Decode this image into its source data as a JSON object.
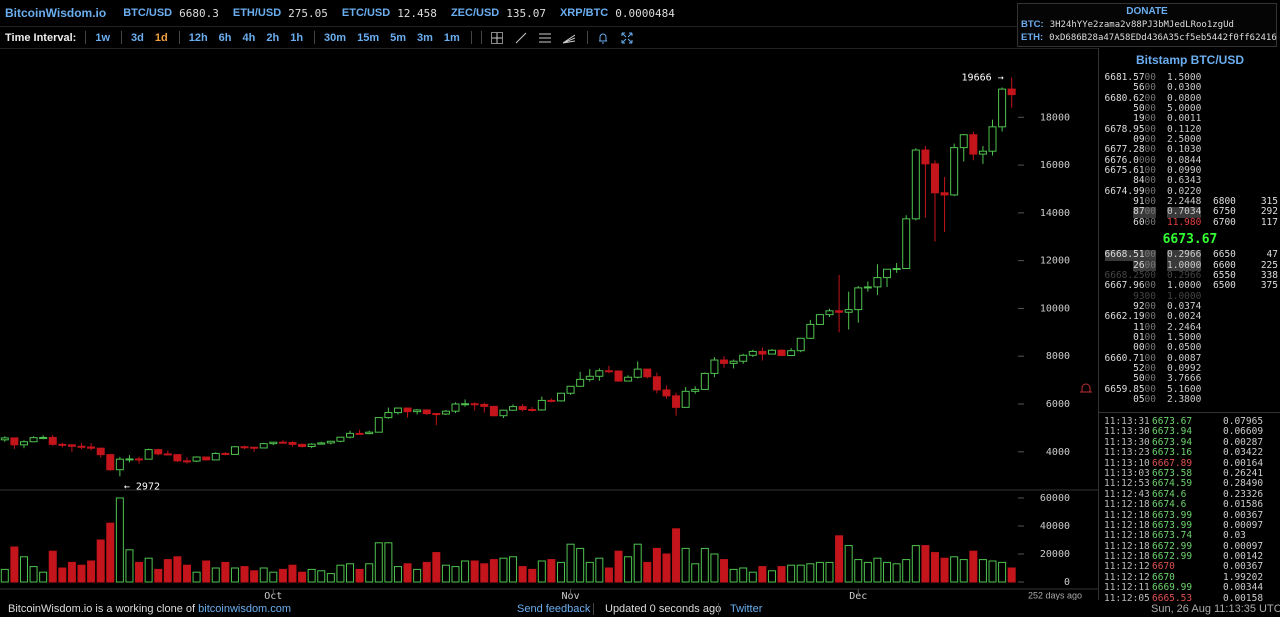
{
  "header": {
    "brand": "BitcoinWisdom.io",
    "tickers": [
      {
        "pair": "BTC/USD",
        "price": "6680.3"
      },
      {
        "pair": "ETH/USD",
        "price": "275.05"
      },
      {
        "pair": "ETC/USD",
        "price": "12.458"
      },
      {
        "pair": "ZEC/USD",
        "price": "135.07"
      },
      {
        "pair": "XRP/BTC",
        "price": "0.0000484"
      }
    ]
  },
  "donate": {
    "title": "DONATE",
    "rows": [
      {
        "label": "BTC:",
        "address": "3H24hYYe2zama2v88PJ3bMJedLRoo1zgUd"
      },
      {
        "label": "ETH:",
        "address": "0xD686B28a47A58EDd436A35cf5eb5442f0ff62416"
      }
    ]
  },
  "toolbar": {
    "label": "Time Interval:",
    "intervals": [
      "1w",
      "3d",
      "1d",
      "12h",
      "6h",
      "4h",
      "2h",
      "1h",
      "30m",
      "15m",
      "5m",
      "3m",
      "1m"
    ],
    "active": "1d"
  },
  "chart_data": {
    "type": "candlestick",
    "candles": [
      [
        4500,
        4650,
        4420,
        4580
      ],
      [
        4580,
        4600,
        4120,
        4290
      ],
      [
        4290,
        4480,
        4150,
        4420
      ],
      [
        4420,
        4650,
        4410,
        4590
      ],
      [
        4590,
        4690,
        4520,
        4600
      ],
      [
        4600,
        4700,
        4250,
        4310
      ],
      [
        4310,
        4380,
        4180,
        4290
      ],
      [
        4290,
        4300,
        4000,
        4230
      ],
      [
        4230,
        4360,
        4110,
        4200
      ],
      [
        4200,
        4370,
        4060,
        4150
      ],
      [
        4150,
        4150,
        3760,
        3880
      ],
      [
        3880,
        3920,
        3200,
        3250
      ],
      [
        3250,
        3780,
        2972,
        3690
      ],
      [
        3690,
        3860,
        3560,
        3700
      ],
      [
        3700,
        3790,
        3500,
        3690
      ],
      [
        3690,
        4130,
        3690,
        4090
      ],
      [
        4090,
        4120,
        3850,
        3910
      ],
      [
        3910,
        4050,
        3850,
        3880
      ],
      [
        3880,
        3890,
        3570,
        3620
      ],
      [
        3620,
        3760,
        3500,
        3610
      ],
      [
        3610,
        3810,
        3570,
        3780
      ],
      [
        3780,
        3790,
        3630,
        3660
      ],
      [
        3660,
        3980,
        3660,
        3930
      ],
      [
        3930,
        3980,
        3850,
        3890
      ],
      [
        3890,
        4230,
        3880,
        4210
      ],
      [
        4210,
        4260,
        4110,
        4190
      ],
      [
        4190,
        4200,
        4000,
        4160
      ],
      [
        4160,
        4380,
        4160,
        4340
      ],
      [
        4340,
        4410,
        4280,
        4400
      ],
      [
        4400,
        4480,
        4370,
        4390
      ],
      [
        4390,
        4440,
        4220,
        4310
      ],
      [
        4310,
        4340,
        4180,
        4220
      ],
      [
        4220,
        4360,
        4150,
        4320
      ],
      [
        4320,
        4420,
        4300,
        4370
      ],
      [
        4370,
        4460,
        4310,
        4440
      ],
      [
        4440,
        4620,
        4400,
        4610
      ],
      [
        4610,
        4880,
        4560,
        4770
      ],
      [
        4770,
        4920,
        4720,
        4760
      ],
      [
        4760,
        4880,
        4730,
        4820
      ],
      [
        4820,
        5440,
        4810,
        5430
      ],
      [
        5430,
        5850,
        5380,
        5640
      ],
      [
        5640,
        5840,
        5560,
        5830
      ],
      [
        5830,
        5850,
        5430,
        5680
      ],
      [
        5680,
        5790,
        5560,
        5750
      ],
      [
        5750,
        5780,
        5540,
        5600
      ],
      [
        5600,
        5620,
        5110,
        5580
      ],
      [
        5580,
        5750,
        5540,
        5700
      ],
      [
        5700,
        6070,
        5620,
        6000
      ],
      [
        6000,
        6190,
        5890,
        6010
      ],
      [
        6010,
        6070,
        5730,
        5980
      ],
      [
        5980,
        6050,
        5640,
        5900
      ],
      [
        5900,
        5920,
        5480,
        5510
      ],
      [
        5510,
        5760,
        5410,
        5740
      ],
      [
        5740,
        5980,
        5720,
        5890
      ],
      [
        5890,
        5990,
        5690,
        5770
      ],
      [
        5770,
        5870,
        5680,
        5750
      ],
      [
        5750,
        6310,
        5720,
        6150
      ],
      [
        6150,
        6230,
        6070,
        6130
      ],
      [
        6130,
        6470,
        6100,
        6450
      ],
      [
        6450,
        6750,
        6380,
        6740
      ],
      [
        6740,
        7350,
        6740,
        7030
      ],
      [
        7030,
        7460,
        6940,
        7160
      ],
      [
        7160,
        7490,
        6970,
        7390
      ],
      [
        7390,
        7600,
        7290,
        7380
      ],
      [
        7380,
        7400,
        6930,
        6960
      ],
      [
        6960,
        7200,
        6960,
        7120
      ],
      [
        7120,
        7780,
        7070,
        7460
      ],
      [
        7460,
        7470,
        7070,
        7140
      ],
      [
        7140,
        7320,
        6440,
        6590
      ],
      [
        6590,
        6780,
        6220,
        6340
      ],
      [
        6340,
        6470,
        5510,
        5860
      ],
      [
        5860,
        6710,
        5860,
        6530
      ],
      [
        6530,
        6740,
        6430,
        6610
      ],
      [
        6610,
        7320,
        6610,
        7280
      ],
      [
        7280,
        7960,
        7120,
        7840
      ],
      [
        7840,
        8000,
        7520,
        7700
      ],
      [
        7700,
        7860,
        7490,
        7790
      ],
      [
        7790,
        8100,
        7680,
        8040
      ],
      [
        8040,
        8270,
        7970,
        8200
      ],
      [
        8200,
        8370,
        7820,
        8090
      ],
      [
        8090,
        8300,
        8070,
        8250
      ],
      [
        8250,
        8290,
        8000,
        8030
      ],
      [
        8030,
        8340,
        8000,
        8230
      ],
      [
        8230,
        8760,
        8170,
        8750
      ],
      [
        8750,
        9520,
        8730,
        9330
      ],
      [
        9330,
        9740,
        9320,
        9740
      ],
      [
        9740,
        9990,
        9640,
        9900
      ],
      [
        9900,
        11400,
        9000,
        9840
      ],
      [
        9840,
        10700,
        9120,
        9950
      ],
      [
        9950,
        10940,
        9400,
        10860
      ],
      [
        10860,
        11130,
        10700,
        10900
      ],
      [
        10900,
        11850,
        10560,
        11290
      ],
      [
        11290,
        11600,
        10900,
        11640
      ],
      [
        11640,
        11900,
        11490,
        11670
      ],
      [
        11670,
        13900,
        11670,
        13750
      ],
      [
        13750,
        16700,
        13680,
        16630
      ],
      [
        16630,
        16800,
        13800,
        16050
      ],
      [
        16050,
        16200,
        12800,
        14840
      ],
      [
        14840,
        15500,
        13200,
        14750
      ],
      [
        14750,
        16900,
        14700,
        16730
      ],
      [
        16730,
        17300,
        16150,
        17270
      ],
      [
        17270,
        17400,
        16200,
        16460
      ],
      [
        16460,
        16800,
        16050,
        16580
      ],
      [
        16580,
        17900,
        16400,
        17600
      ],
      [
        17600,
        19250,
        17400,
        19180
      ],
      [
        19180,
        19666,
        18400,
        18950
      ]
    ],
    "volumes": [
      9000,
      25000,
      18000,
      11000,
      7000,
      22000,
      10000,
      14000,
      12000,
      15000,
      30000,
      42000,
      60000,
      23000,
      14000,
      17000,
      9000,
      16000,
      18000,
      12000,
      7000,
      15000,
      10000,
      14000,
      10000,
      11000,
      8000,
      10000,
      7000,
      9000,
      12000,
      7000,
      9000,
      8000,
      6000,
      12000,
      13000,
      9000,
      13000,
      28000,
      28000,
      11000,
      13000,
      9000,
      14000,
      21000,
      12000,
      11000,
      15000,
      15000,
      13000,
      16000,
      17000,
      18000,
      11000,
      9000,
      15000,
      16000,
      14000,
      27000,
      24000,
      14000,
      17000,
      10000,
      22000,
      18000,
      27000,
      14000,
      24000,
      20000,
      38000,
      24000,
      13000,
      24000,
      20000,
      16000,
      9000,
      10000,
      7000,
      11000,
      8000,
      11000,
      12000,
      12000,
      13000,
      14000,
      14000,
      33000,
      26000,
      16000,
      14000,
      17000,
      14000,
      13000,
      16000,
      26000,
      26000,
      21000,
      17000,
      18000,
      16000,
      22000,
      16000,
      15000,
      14000,
      10000
    ],
    "xlim": [
      -0.5,
      114
    ],
    "xticks": [
      {
        "value": 28,
        "label": "Oct"
      },
      {
        "value": 59,
        "label": "Nov"
      },
      {
        "value": 89,
        "label": "Dec"
      }
    ],
    "ylim": [
      2400,
      20900
    ],
    "yticks": [
      4000,
      6000,
      8000,
      10000,
      12000,
      14000,
      16000,
      18000
    ],
    "volume_ylim": [
      0,
      65700
    ],
    "volume_yticks": [
      0,
      20000,
      40000,
      60000
    ],
    "up_color": "#4fc34f",
    "down_color": "#c3151b",
    "annotations": [
      "19666 →",
      "← 2972"
    ],
    "since_label": "252 days ago"
  },
  "orderbook": {
    "title": "Bitstamp BTC/USD",
    "asks": [
      [
        "6681.57",
        "00",
        "1.5000"
      ],
      [
        "56",
        "00",
        "0.0300"
      ],
      [
        "6680.62",
        "00",
        "0.0800"
      ],
      [
        "50",
        "00",
        "5.0000"
      ],
      [
        "19",
        "00",
        "0.0011"
      ],
      [
        "6678.95",
        "00",
        "0.1120"
      ],
      [
        "09",
        "00",
        "2.5000"
      ],
      [
        "6677.28",
        "00",
        "0.1030"
      ],
      [
        "6676.0",
        "000",
        "0.0844"
      ],
      [
        "6675.61",
        "00",
        "0.0990"
      ],
      [
        "84",
        "00",
        "0.6343"
      ],
      [
        "6674.99",
        "00",
        "0.0220"
      ],
      [
        "91",
        "00",
        "2.2448"
      ],
      [
        "87",
        "00",
        "0.7034"
      ],
      [
        "60",
        "00",
        "11.980"
      ]
    ],
    "last": "6673.67",
    "bids": [
      [
        "6668.51",
        "00",
        "0.2966"
      ],
      [
        "26",
        "00",
        "1.0000"
      ],
      [
        "6668.25",
        "00",
        "0.2966"
      ],
      [
        "6667.96",
        "00",
        "1.0000"
      ],
      [
        "93",
        "00",
        "1.0000"
      ],
      [
        "92",
        "00",
        "0.0374"
      ],
      [
        "6662.19",
        "00",
        "0.0024"
      ],
      [
        "11",
        "00",
        "2.2464"
      ],
      [
        "01",
        "00",
        "1.5000"
      ],
      [
        "00",
        "00",
        "0.0500"
      ],
      [
        "6660.71",
        "00",
        "0.0087"
      ],
      [
        "52",
        "00",
        "0.0992"
      ],
      [
        "50",
        "00",
        "3.7666"
      ],
      [
        "6659.85",
        "00",
        "5.1600"
      ],
      [
        "05",
        "00",
        "2.3800"
      ]
    ],
    "depth": [
      [
        6800,
        315
      ],
      [
        6750,
        292
      ],
      [
        6700,
        117
      ],
      [
        6650,
        47
      ],
      [
        6600,
        225
      ],
      [
        6550,
        338
      ],
      [
        6500,
        375
      ]
    ]
  },
  "trades": [
    [
      "11:13:31",
      "6673.67",
      "0.07965",
      "#6ed36e"
    ],
    [
      "11:13:30",
      "6673.94",
      "0.06609",
      "#6ed36e"
    ],
    [
      "11:13:30",
      "6673.94",
      "0.00287",
      "#6ed36e"
    ],
    [
      "11:13:23",
      "6673.16",
      "0.03422",
      "#6ed36e"
    ],
    [
      "11:13:10",
      "6667.89",
      "0.00164",
      "#e05050"
    ],
    [
      "11:13:03",
      "6673.58",
      "0.26241",
      "#6ed36e"
    ],
    [
      "11:12:53",
      "6674.59",
      "0.28490",
      "#6ed36e"
    ],
    [
      "11:12:43",
      "6674.6",
      "0.23326",
      "#6ed36e"
    ],
    [
      "11:12:18",
      "6674.6",
      "0.01586",
      "#6ed36e"
    ],
    [
      "11:12:18",
      "6673.99",
      "0.00367",
      "#6ed36e"
    ],
    [
      "11:12:18",
      "6673.99",
      "0.00097",
      "#6ed36e"
    ],
    [
      "11:12:18",
      "6673.74",
      "0.03",
      "#6ed36e"
    ],
    [
      "11:12:18",
      "6672.99",
      "0.00097",
      "#6ed36e"
    ],
    [
      "11:12:18",
      "6672.99",
      "0.00142",
      "#6ed36e"
    ],
    [
      "11:12:12",
      "6670",
      "0.00367",
      "#e05050"
    ],
    [
      "11:12:12",
      "6670",
      "1.99202",
      "#6ed36e"
    ],
    [
      "11:12:11",
      "6669.99",
      "0.00344",
      "#6ed36e"
    ],
    [
      "11:12:05",
      "6665.53",
      "0.00158",
      "#e05050"
    ]
  ],
  "footer": {
    "note": "BitcoinWisdom.io is a working clone of",
    "link": "bitcoinwisdom.com",
    "feedback": "Send feedback",
    "updated": "Updated 0 seconds ago",
    "twitter": "Twitter",
    "time": "Sun, 26 Aug 11:13:35 UTC"
  }
}
